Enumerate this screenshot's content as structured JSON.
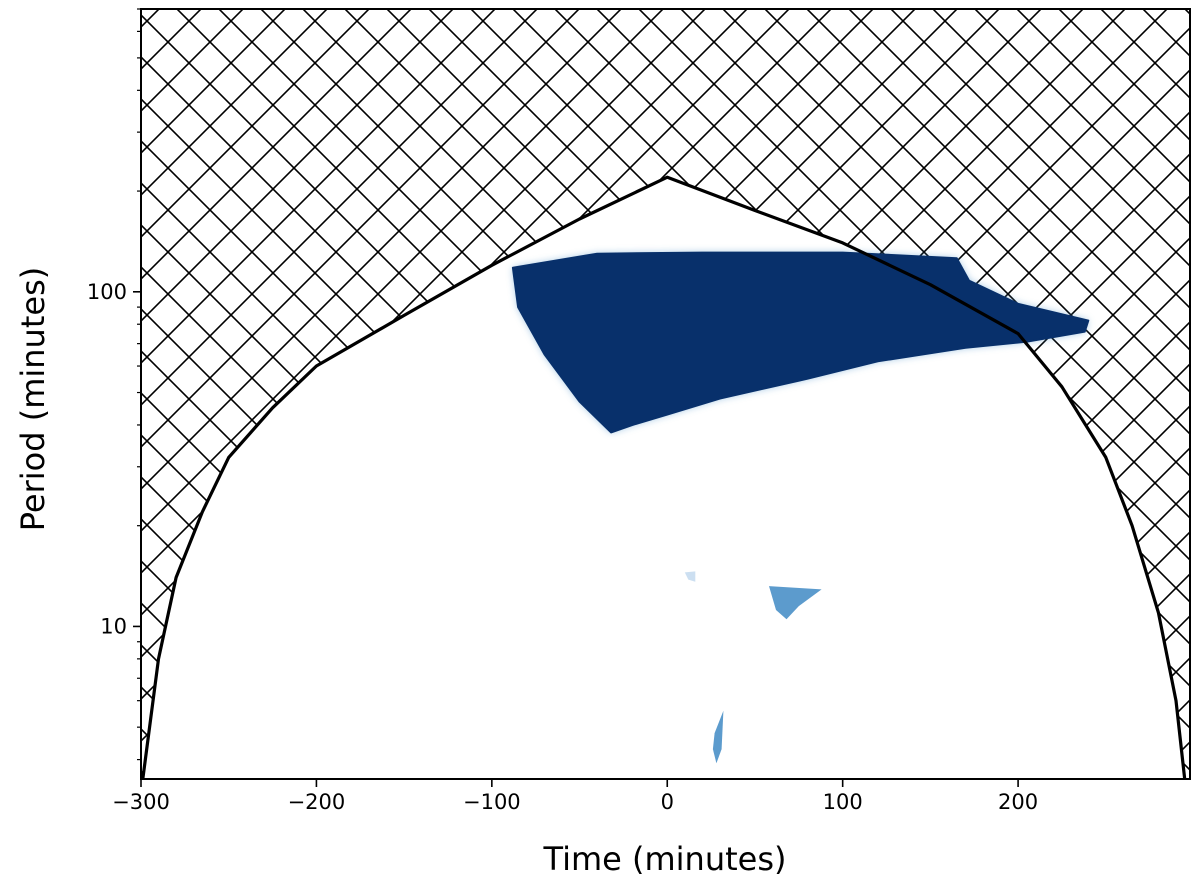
{
  "chart_data": {
    "type": "heatmap",
    "title": "",
    "xlabel": "Time (minutes)",
    "ylabel": "Period (minutes)",
    "xlim": [
      -300,
      298
    ],
    "ylim": [
      3.5,
      700
    ],
    "yscale": "log",
    "grid": false,
    "x_ticks": [
      -300,
      -200,
      -100,
      0,
      100,
      200
    ],
    "x_tick_labels": [
      "−300",
      "−200",
      "−100",
      "0",
      "100",
      "200"
    ],
    "y_ticks": [
      10,
      100
    ],
    "y_tick_labels": [
      "10",
      "100"
    ],
    "colors": {
      "power_high": "#08306b",
      "power_mid": "#4a90c8",
      "power_low": "#c6dbef",
      "cone_line": "#000000",
      "hatch": "#000000"
    },
    "cone_of_influence": {
      "description_shown": "cross-hatched region outside cone",
      "points": [
        [
          -299,
          3.5
        ],
        [
          -290,
          8
        ],
        [
          -280,
          14
        ],
        [
          -265,
          22
        ],
        [
          -250,
          32
        ],
        [
          -225,
          45
        ],
        [
          -200,
          60
        ],
        [
          -150,
          85
        ],
        [
          -100,
          120
        ],
        [
          -50,
          165
        ],
        [
          0,
          220
        ],
        [
          50,
          175
        ],
        [
          100,
          140
        ],
        [
          150,
          105
        ],
        [
          200,
          75
        ],
        [
          225,
          52
        ],
        [
          250,
          32
        ],
        [
          265,
          20
        ],
        [
          280,
          11
        ],
        [
          290,
          6
        ],
        [
          295,
          3.5
        ]
      ]
    },
    "significant_regions": [
      {
        "name": "",
        "level": "high",
        "outline": [
          [
            -88,
            118
          ],
          [
            -40,
            130
          ],
          [
            20,
            131
          ],
          [
            100,
            131
          ],
          [
            165,
            126
          ],
          [
            172,
            108
          ],
          [
            200,
            92
          ],
          [
            240,
            82
          ],
          [
            238,
            76
          ],
          [
            205,
            71
          ],
          [
            170,
            68
          ],
          [
            120,
            62
          ],
          [
            80,
            55
          ],
          [
            30,
            48
          ],
          [
            0,
            43
          ],
          [
            -20,
            40
          ],
          [
            -32,
            38
          ],
          [
            -50,
            47
          ],
          [
            -70,
            65
          ],
          [
            -85,
            90
          ]
        ]
      },
      {
        "name": "",
        "level": "mid",
        "outline": [
          [
            58,
            13.2
          ],
          [
            88,
            12.9
          ],
          [
            75,
            11.5
          ],
          [
            68,
            10.5
          ],
          [
            62,
            11.2
          ]
        ]
      },
      {
        "name": "",
        "level": "low",
        "outline": [
          [
            10,
            14.5
          ],
          [
            16,
            14.6
          ],
          [
            16,
            13.6
          ],
          [
            12,
            13.8
          ]
        ]
      },
      {
        "name": "",
        "level": "mid",
        "outline": [
          [
            27,
            4.8
          ],
          [
            32,
            5.6
          ],
          [
            31,
            4.3
          ],
          [
            28,
            3.9
          ],
          [
            26,
            4.3
          ]
        ]
      }
    ]
  }
}
